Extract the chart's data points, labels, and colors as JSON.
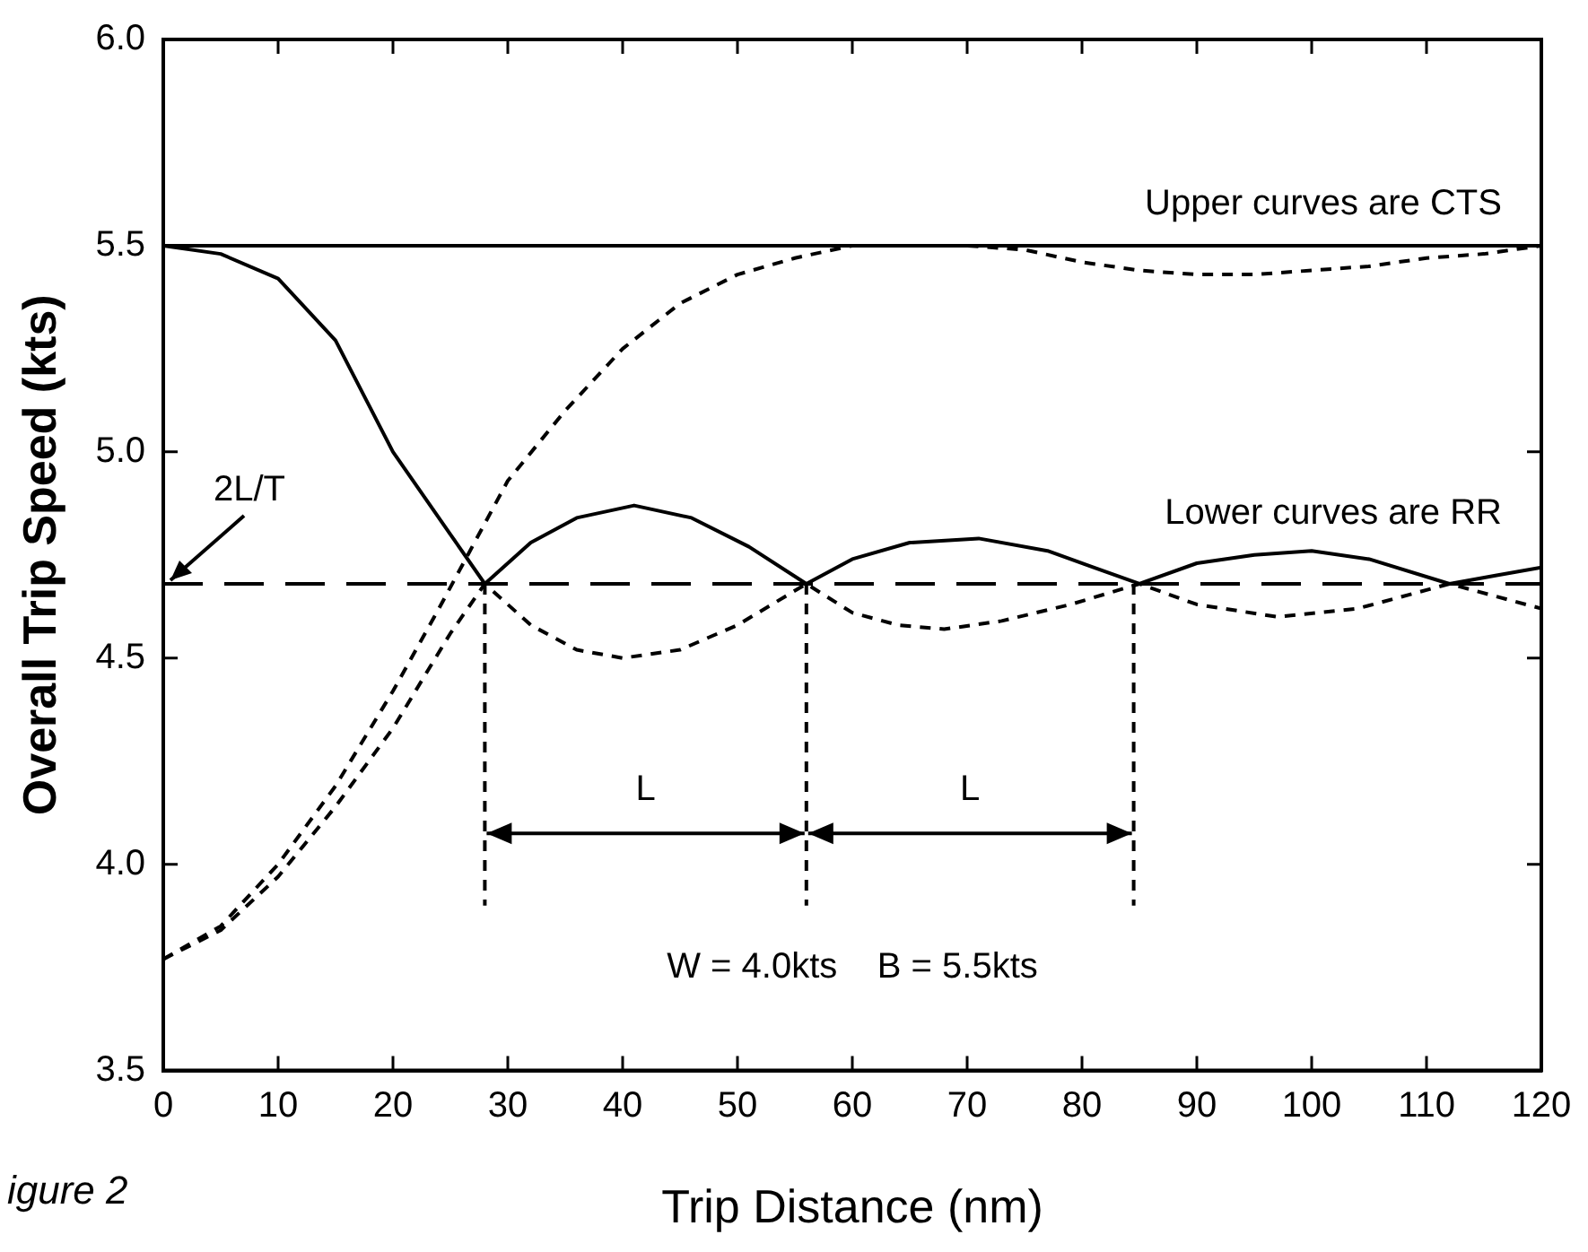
{
  "chart_data": {
    "type": "line",
    "xlabel": "Trip Distance (nm)",
    "ylabel": "Overall Trip Speed (kts)",
    "xlim": [
      0,
      120
    ],
    "xticks": [
      0,
      10,
      20,
      30,
      40,
      50,
      60,
      70,
      80,
      90,
      100,
      110,
      120
    ],
    "ylim": [
      3.5,
      6.0
    ],
    "yticks": [
      3.5,
      {
        "value": 4,
        "label": "4.0"
      },
      4.5,
      {
        "value": 5,
        "label": "5.0"
      },
      5.5,
      {
        "value": 6,
        "label": "6.0"
      }
    ],
    "grid": false,
    "legend": false,
    "marker": "none",
    "series": [
      {
        "color": "#000000",
        "line_style": "solid",
        "x": [
          0,
          120
        ],
        "values": [
          5.5,
          5.5
        ]
      },
      {
        "color": "#000000",
        "line_style": "dashed",
        "x": [
          0,
          5,
          10,
          15,
          20,
          24,
          30,
          35,
          40,
          45,
          50,
          55,
          60,
          65,
          70,
          75,
          80,
          85,
          90,
          95,
          100,
          105,
          110,
          115,
          120
        ],
        "values": [
          3.77,
          3.85,
          4.0,
          4.19,
          4.42,
          4.62,
          4.93,
          5.1,
          5.25,
          5.36,
          5.43,
          5.47,
          5.5,
          5.5,
          5.5,
          5.49,
          5.46,
          5.44,
          5.43,
          5.43,
          5.44,
          5.45,
          5.47,
          5.48,
          5.5
        ]
      },
      {
        "color": "#000000",
        "line_style": "solid",
        "x": [
          0,
          5,
          10,
          15,
          20,
          25,
          28,
          32,
          36,
          41,
          46,
          51,
          56,
          60,
          65,
          71,
          77,
          81,
          85,
          90,
          95,
          100,
          105,
          112,
          116,
          120
        ],
        "values": [
          5.5,
          5.48,
          5.42,
          5.27,
          5.0,
          4.8,
          4.68,
          4.78,
          4.84,
          4.87,
          4.84,
          4.77,
          4.68,
          4.74,
          4.78,
          4.79,
          4.76,
          4.72,
          4.68,
          4.73,
          4.75,
          4.76,
          4.74,
          4.68,
          4.7,
          4.72
        ]
      },
      {
        "color": "#000000",
        "line_style": "dashed",
        "x": [
          0,
          5,
          10,
          15,
          20,
          25,
          28,
          32,
          36,
          40,
          45,
          50,
          56,
          60,
          64,
          68,
          73,
          79,
          85,
          90,
          97,
          104,
          112,
          116,
          120
        ],
        "values": [
          3.77,
          3.84,
          3.97,
          4.14,
          4.33,
          4.56,
          4.68,
          4.58,
          4.52,
          4.5,
          4.52,
          4.58,
          4.68,
          4.61,
          4.58,
          4.57,
          4.59,
          4.63,
          4.68,
          4.63,
          4.6,
          4.62,
          4.68,
          4.65,
          4.62
        ]
      }
    ],
    "ref_lines": [
      {
        "axis": "y",
        "value": 4.68,
        "label": "2L/T",
        "color": "#000000",
        "line_style": "dashed"
      },
      {
        "axis": "x",
        "value": 28,
        "color": "#000000",
        "line_style": "dashed"
      },
      {
        "axis": "x",
        "value": 56,
        "color": "#000000",
        "line_style": "dashed"
      },
      {
        "axis": "x",
        "value": 84.5,
        "color": "#000000",
        "line_style": "dashed"
      }
    ],
    "annotations": [
      "Upper curves are CTS",
      "Lower curves are RR",
      "L",
      "L",
      "W = 4.0kts    B = 5.5kts",
      "igure 2"
    ]
  }
}
